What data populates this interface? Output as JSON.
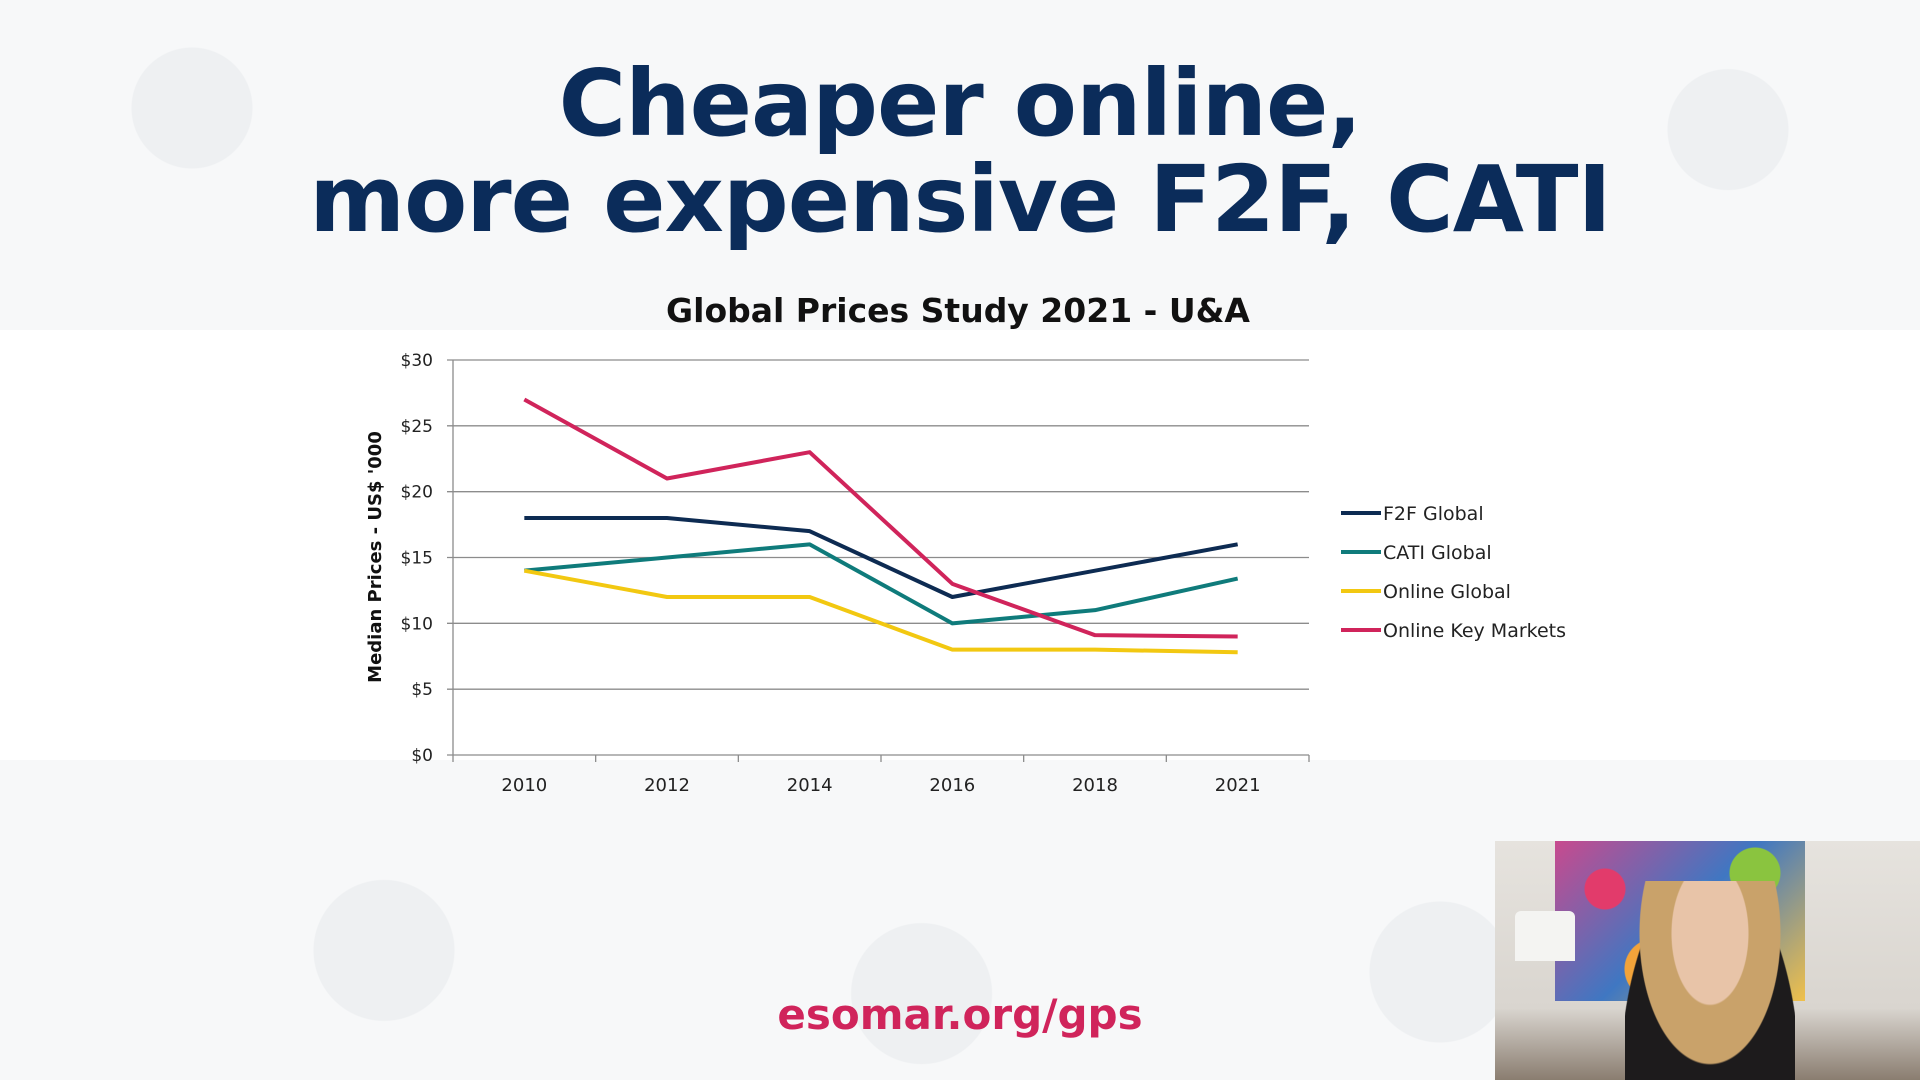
{
  "slide": {
    "title_line1": "Cheaper online,",
    "title_line2": "more expensive F2F, CATI",
    "footer_link": "esomar.org/gps"
  },
  "chart_data": {
    "type": "line",
    "title": "Global Prices Study 2021 - U&A",
    "xlabel": "",
    "ylabel": "Median Prices - US$ '000",
    "categories": [
      "2010",
      "2012",
      "2014",
      "2016",
      "2018",
      "2021"
    ],
    "ylim": [
      0,
      30
    ],
    "yticks": [
      0,
      5,
      10,
      15,
      20,
      25,
      30
    ],
    "ytick_labels": [
      "$0",
      "$5",
      "$10",
      "$15",
      "$20",
      "$25",
      "$30"
    ],
    "grid": true,
    "legend_placement": "right",
    "series": [
      {
        "name": "F2F Global",
        "color": "#0d2b52",
        "values": [
          18,
          18,
          17,
          12,
          14,
          16
        ]
      },
      {
        "name": "CATI Global",
        "color": "#0f7b7b",
        "values": [
          14,
          15,
          16,
          10,
          11,
          13.4
        ]
      },
      {
        "name": "Online Global",
        "color": "#f2c811",
        "values": [
          14,
          12,
          12,
          8,
          8,
          7.8
        ]
      },
      {
        "name": "Online Key Markets",
        "color": "#d0245b",
        "values": [
          27,
          21,
          23,
          13,
          9.1,
          9
        ]
      }
    ]
  }
}
